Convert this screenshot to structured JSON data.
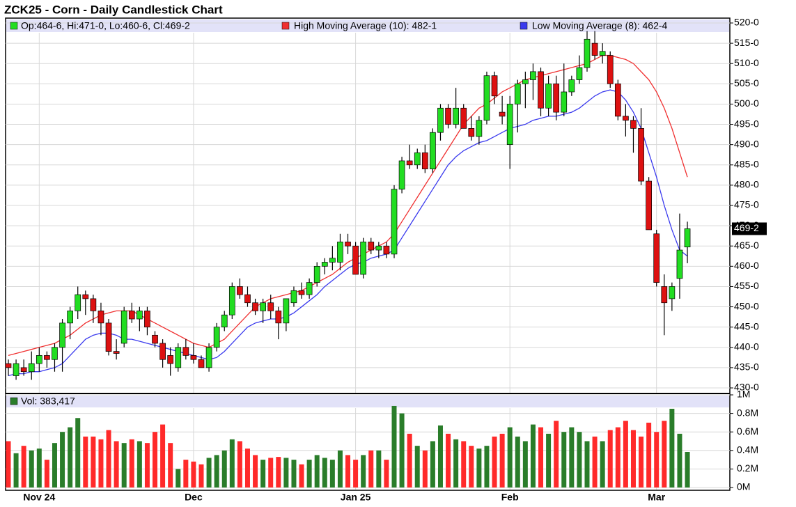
{
  "chart_data": {
    "type": "candlestick",
    "title": "ZCK25 - Corn - Daily Candlestick Chart",
    "legend_price": "Op:464-6, Hi:471-0, Lo:460-6, Cl:469-2",
    "legend_high_ma": "High Moving Average (10): 482-1",
    "legend_low_ma": "Low Moving Average (8): 462-4",
    "legend_volume": "Vol: 383,417",
    "last_label": "469-2",
    "up_color": "#22dd22",
    "down_color": "#dd1111",
    "volume_up_color": "#2a7d2a",
    "volume_down_color": "#ff2a2a",
    "grid": true,
    "categories": [
      null,
      null,
      null,
      null,
      "Nov 24",
      null,
      null,
      null,
      null,
      null,
      null,
      null,
      null,
      null,
      null,
      null,
      null,
      null,
      null,
      null,
      null,
      null,
      null,
      null,
      "Dec",
      null,
      null,
      null,
      null,
      null,
      null,
      null,
      null,
      null,
      null,
      null,
      null,
      null,
      null,
      null,
      null,
      null,
      null,
      null,
      null,
      "Jan 25",
      null,
      null,
      null,
      null,
      null,
      null,
      null,
      null,
      null,
      null,
      null,
      null,
      null,
      null,
      null,
      null,
      null,
      null,
      null,
      "Feb",
      null,
      null,
      null,
      null,
      null,
      null,
      null,
      null,
      null,
      null,
      null,
      null,
      null,
      null,
      null,
      null,
      null,
      null,
      "Mar",
      null,
      null,
      null,
      null
    ],
    "open": [
      436,
      433,
      435,
      434,
      436,
      438,
      437,
      440,
      446,
      449,
      453,
      452,
      449,
      446,
      439,
      441,
      449,
      447,
      449,
      443,
      441,
      438,
      435,
      440,
      438,
      437,
      435,
      440,
      445,
      448,
      455,
      453,
      451,
      449,
      451,
      449,
      446,
      451,
      454,
      453,
      456,
      460,
      461,
      461,
      466,
      465,
      458,
      466,
      464,
      465,
      463,
      479,
      486,
      485,
      488,
      484,
      493,
      499,
      495,
      499,
      494,
      492,
      496,
      507,
      498,
      490,
      500,
      505,
      506,
      508,
      499,
      505,
      498,
      503,
      506,
      509,
      515,
      512,
      512,
      505,
      497,
      496,
      494,
      481,
      468,
      455,
      452,
      457,
      464.75
    ],
    "high": [
      437,
      437,
      437,
      439,
      440,
      439,
      441,
      447,
      450,
      455,
      454,
      453,
      451,
      447,
      442,
      450,
      451,
      450,
      450,
      444,
      442,
      440,
      441,
      442,
      441,
      438,
      441,
      446,
      449,
      456,
      457,
      455,
      452,
      452,
      453,
      450,
      452,
      455,
      456,
      457,
      461,
      462,
      465,
      468,
      468,
      466,
      467,
      467,
      466,
      466,
      480,
      487,
      490,
      489,
      490,
      494,
      500,
      500,
      504,
      500,
      497,
      497,
      508,
      508,
      502,
      502,
      506,
      508,
      510,
      509,
      507,
      507,
      510,
      507,
      512,
      518,
      518,
      515,
      513,
      506,
      500,
      497,
      499,
      482,
      469,
      458,
      456,
      473,
      471
    ],
    "low": [
      433,
      432,
      433,
      432,
      434,
      435,
      434,
      434,
      442,
      447,
      448,
      446,
      443,
      438,
      437,
      440,
      446,
      444,
      443,
      440,
      435,
      433,
      434,
      437,
      436,
      435,
      434,
      439,
      444,
      447,
      452,
      450,
      448,
      446,
      447,
      442,
      444,
      450,
      452,
      452,
      455,
      458,
      459,
      459,
      463,
      458,
      457,
      463,
      462,
      462,
      462,
      478,
      484,
      484,
      483,
      483,
      491,
      494,
      494,
      494,
      491,
      490,
      495,
      500,
      495,
      484,
      493,
      499,
      501,
      497,
      497,
      496,
      497,
      502,
      505,
      508,
      511,
      510,
      504,
      496,
      492,
      488,
      480,
      469,
      455,
      443,
      449,
      452,
      460.75
    ],
    "close": [
      435,
      436,
      434,
      436,
      438,
      437,
      440,
      446,
      449,
      453,
      452,
      449,
      446,
      439,
      438.5,
      449,
      447,
      449,
      445,
      441,
      437,
      436,
      440,
      438,
      437,
      435,
      440,
      445,
      448,
      455,
      453,
      451,
      449,
      451,
      449,
      446,
      452,
      454,
      453,
      456,
      460,
      461,
      462,
      466,
      465,
      458,
      466,
      464,
      465,
      463,
      479,
      486,
      485,
      488,
      484,
      493,
      499,
      495,
      499,
      494,
      492,
      496,
      507,
      502,
      497,
      500,
      505,
      506,
      508,
      499,
      505,
      498,
      503,
      506,
      509,
      516,
      512,
      513,
      505,
      497,
      496,
      494,
      481,
      469,
      456,
      451,
      455,
      464,
      469.25
    ],
    "series": [
      {
        "name": "High Moving Average (10)",
        "color": "#f03030",
        "values": [
          438,
          438.5,
          439,
          439.5,
          440,
          440.5,
          441,
          442,
          443,
          444.5,
          446,
          447,
          448,
          448.5,
          449,
          449,
          449,
          448,
          447,
          446,
          445,
          444,
          443,
          442,
          441,
          440.5,
          440,
          441,
          442,
          444,
          446,
          448,
          450,
          451,
          452,
          452.5,
          453,
          453.5,
          454,
          455,
          456,
          457,
          458,
          459.5,
          461,
          462,
          463,
          464,
          465,
          466,
          468,
          471,
          474,
          477,
          480,
          483,
          486,
          489,
          492,
          495,
          497,
          499,
          500,
          501.5,
          503,
          504,
          505,
          506,
          506.5,
          507,
          507.5,
          508,
          508.5,
          509,
          509.5,
          510,
          511,
          512,
          512,
          511.5,
          511,
          510,
          508,
          506,
          503,
          499,
          494,
          488,
          482
        ]
      },
      {
        "name": "Low Moving Average (8)",
        "color": "#3a3aee",
        "values": [
          433,
          433.5,
          433.5,
          434,
          434,
          434.5,
          435,
          436,
          438,
          440,
          442,
          443,
          443.5,
          443.5,
          443,
          442,
          442,
          441.5,
          441,
          440.5,
          440,
          439.5,
          439,
          438.5,
          438,
          437.5,
          437,
          437.5,
          439,
          441,
          443,
          445,
          446,
          446.5,
          447,
          447,
          447.5,
          448.5,
          450,
          451.5,
          453,
          455,
          456.5,
          458,
          459.5,
          460.5,
          461,
          462,
          462.5,
          463,
          464,
          467,
          470,
          473,
          476,
          479,
          482,
          485,
          487,
          488.5,
          489.5,
          490.5,
          491,
          492,
          493,
          494,
          494.5,
          495,
          496,
          496.5,
          497,
          497,
          497.5,
          498,
          499,
          500.5,
          502,
          503,
          503.5,
          503,
          501,
          498,
          494,
          488,
          482,
          475,
          469,
          464,
          462.5
        ]
      }
    ],
    "volume": [
      0.5,
      0.37,
      0.45,
      0.4,
      0.42,
      0.3,
      0.48,
      0.6,
      0.65,
      0.75,
      0.55,
      0.55,
      0.52,
      0.62,
      0.5,
      0.48,
      0.52,
      0.5,
      0.48,
      0.6,
      0.68,
      0.48,
      0.2,
      0.3,
      0.28,
      0.25,
      0.32,
      0.35,
      0.4,
      0.52,
      0.5,
      0.42,
      0.35,
      0.3,
      0.32,
      0.33,
      0.32,
      0.3,
      0.25,
      0.3,
      0.35,
      0.32,
      0.3,
      0.4,
      0.35,
      0.3,
      0.35,
      0.4,
      0.4,
      0.3,
      0.88,
      0.8,
      0.58,
      0.45,
      0.4,
      0.5,
      0.67,
      0.58,
      0.52,
      0.5,
      0.45,
      0.42,
      0.45,
      0.55,
      0.58,
      0.65,
      0.55,
      0.5,
      0.68,
      0.65,
      0.58,
      0.72,
      0.6,
      0.65,
      0.6,
      0.5,
      0.55,
      0.5,
      0.62,
      0.65,
      0.72,
      0.62,
      0.55,
      0.7,
      0.6,
      0.72,
      0.85,
      0.58,
      0.383417
    ],
    "ylim": [
      430,
      520
    ],
    "yticks": [
      {
        "value": 430,
        "label": "430-0"
      },
      {
        "value": 435,
        "label": "435-0"
      },
      {
        "value": 440,
        "label": "440-0"
      },
      {
        "value": 445,
        "label": "445-0"
      },
      {
        "value": 450,
        "label": "450-0"
      },
      {
        "value": 455,
        "label": "455-0"
      },
      {
        "value": 460,
        "label": "460-0"
      },
      {
        "value": 465,
        "label": "465-0"
      },
      {
        "value": 470,
        "label": "470-0"
      },
      {
        "value": 475,
        "label": "475-0"
      },
      {
        "value": 480,
        "label": "480-0"
      },
      {
        "value": 485,
        "label": "485-0"
      },
      {
        "value": 490,
        "label": "490-0"
      },
      {
        "value": 495,
        "label": "495-0"
      },
      {
        "value": 500,
        "label": "500-0"
      },
      {
        "value": 505,
        "label": "505-0"
      },
      {
        "value": 510,
        "label": "510-0"
      },
      {
        "value": 515,
        "label": "515-0"
      },
      {
        "value": 520,
        "label": "520-0"
      }
    ],
    "y2lim": [
      0,
      1
    ],
    "y2ticks": [
      {
        "value": 0,
        "label": "0M"
      },
      {
        "value": 0.2,
        "label": "0.2M"
      },
      {
        "value": 0.4,
        "label": "0.4M"
      },
      {
        "value": 0.6,
        "label": "0.6M"
      },
      {
        "value": 0.8,
        "label": "0.8M"
      },
      {
        "value": 1,
        "label": "1M"
      }
    ]
  }
}
